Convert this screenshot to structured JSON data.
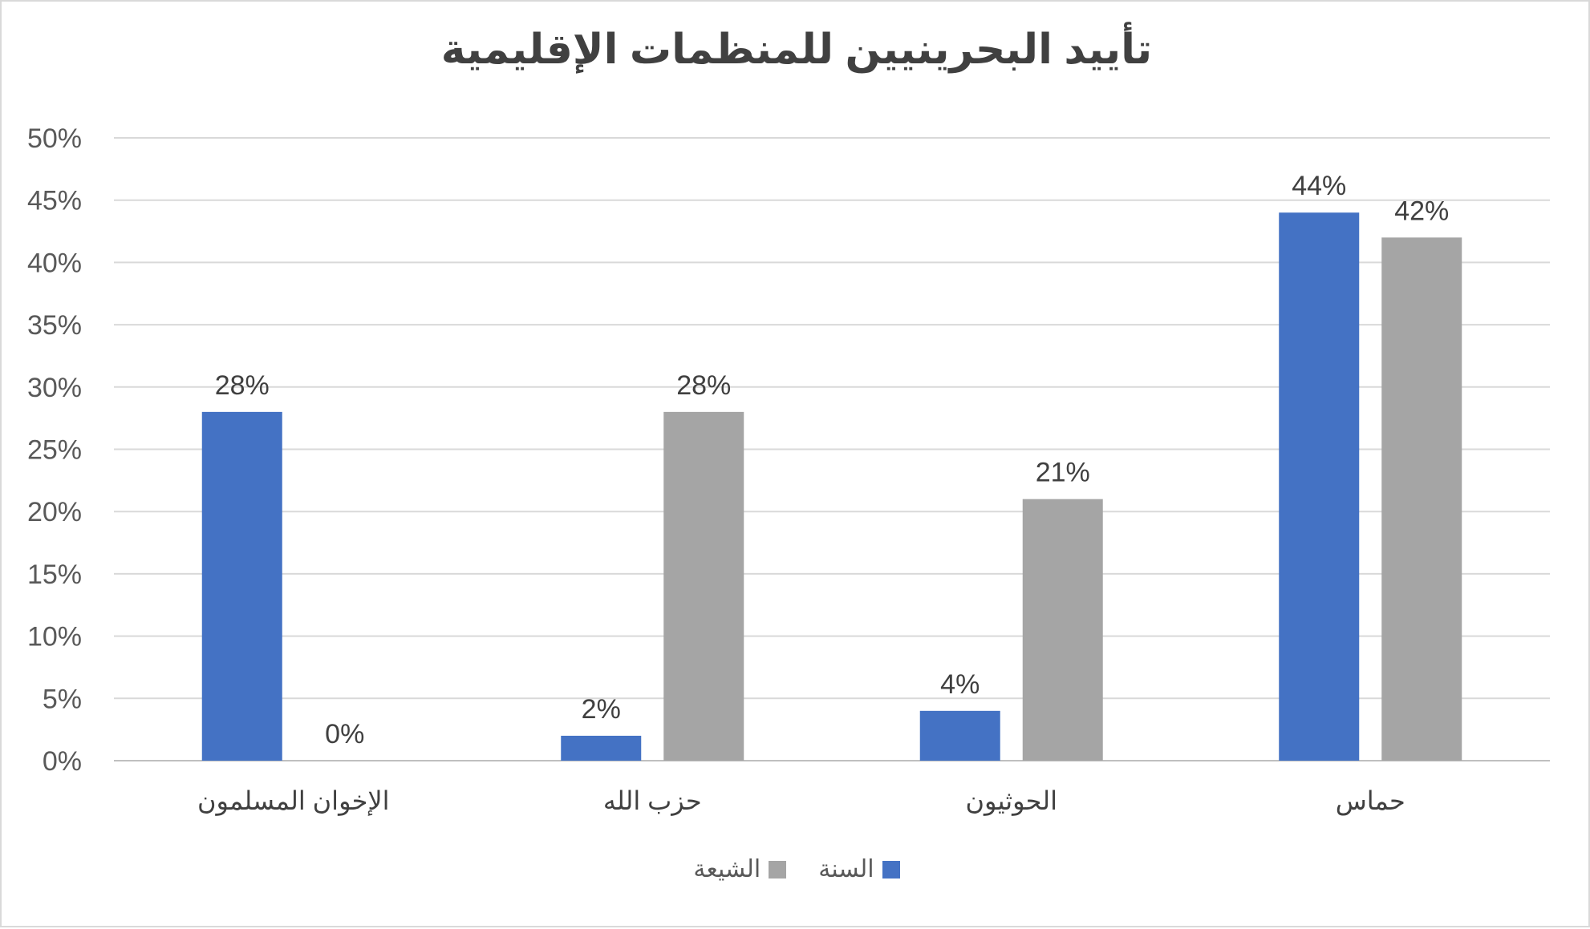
{
  "chart_data": {
    "type": "bar",
    "title": "تأييد البحرينيين للمنظمات الإقليمية",
    "categories": [
      "الإخوان المسلمون",
      "حزب الله",
      "الحوثيون",
      "حماس"
    ],
    "series": [
      {
        "name": "السنة",
        "values": [
          28,
          2,
          4,
          44
        ],
        "labels": [
          "28%",
          "2%",
          "4%",
          "44%"
        ],
        "color": "#4472c4"
      },
      {
        "name": "الشيعة",
        "values": [
          0,
          28,
          21,
          42
        ],
        "labels": [
          "0%",
          "28%",
          "21%",
          "42%"
        ],
        "color": "#a5a5a5"
      }
    ],
    "ylim": [
      0,
      50
    ],
    "yticks": [
      "0%",
      "5%",
      "10%",
      "15%",
      "20%",
      "25%",
      "30%",
      "35%",
      "40%",
      "45%",
      "50%"
    ],
    "grid": true,
    "legend_position": "bottom"
  }
}
